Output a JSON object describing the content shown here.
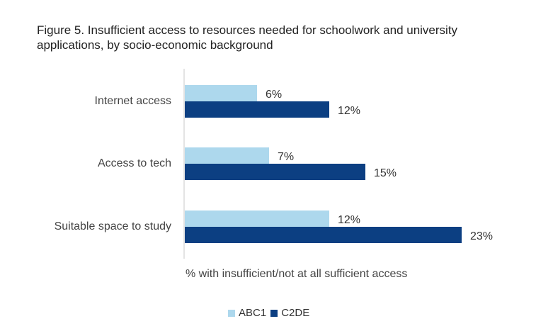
{
  "title": {
    "line1": "Figure 5. Insufficient access to resources needed for schoolwork and university",
    "line2": "applications, by socio-economic background"
  },
  "chart_data": {
    "type": "bar",
    "orientation": "horizontal",
    "categories": [
      "Internet access",
      "Access to tech",
      "Suitable space to study"
    ],
    "series": [
      {
        "name": "ABC1",
        "values": [
          6,
          7,
          12
        ],
        "labels": [
          "6%",
          "7%",
          "12%"
        ],
        "color": "#add8ed"
      },
      {
        "name": "C2DE",
        "values": [
          12,
          15,
          23
        ],
        "labels": [
          "12%",
          "15%",
          "23%"
        ],
        "color": "#0c3f82"
      }
    ],
    "xlabel": "% with insufficient/not at all sufficient access",
    "xlim": [
      0,
      23
    ],
    "grid": false,
    "legend_position": "bottom"
  },
  "legend": {
    "items": [
      {
        "name": "ABC1",
        "color": "#add8ed"
      },
      {
        "name": "C2DE",
        "color": "#0c3f82"
      }
    ]
  }
}
